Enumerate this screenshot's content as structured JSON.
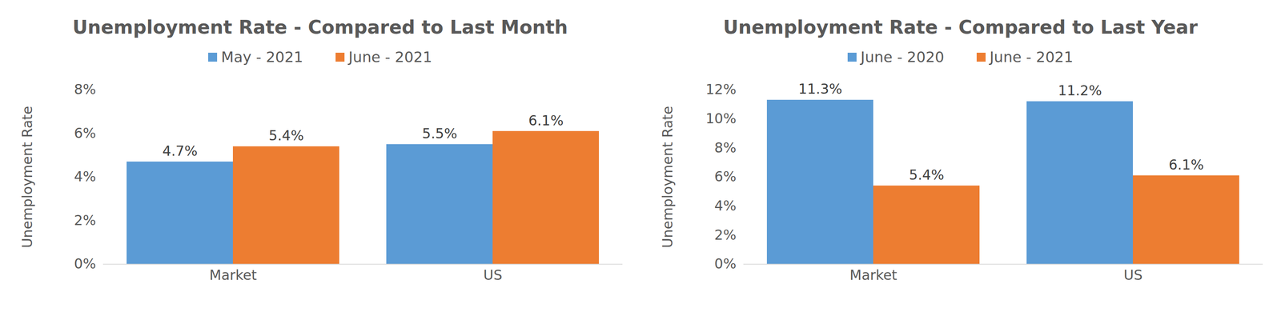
{
  "chart_data": [
    {
      "type": "bar",
      "title": "Unemployment Rate - Compared to Last Month",
      "y_label": "Unemployment Rate",
      "categories": [
        "Market",
        "US"
      ],
      "series": [
        {
          "name": "May - 2021",
          "color": "#5b9bd5",
          "values": [
            4.7,
            5.5
          ],
          "value_labels": [
            "4.7%",
            "5.5%"
          ]
        },
        {
          "name": "June - 2021",
          "color": "#ed7d31",
          "values": [
            5.4,
            6.1
          ],
          "value_labels": [
            "5.4%",
            "6.1%"
          ]
        }
      ],
      "ylim": [
        0,
        8
      ],
      "yticks": [
        {
          "value": 0,
          "label": "0%"
        },
        {
          "value": 2,
          "label": "2%"
        },
        {
          "value": 4,
          "label": "4%"
        },
        {
          "value": 6,
          "label": "6%"
        },
        {
          "value": 8,
          "label": "8%"
        }
      ],
      "grid": false,
      "legend": "top",
      "data_labels": true
    },
    {
      "type": "bar",
      "title": "Unemployment Rate - Compared to Last Year",
      "y_label": "Unemployment Rate",
      "categories": [
        "Market",
        "US"
      ],
      "series": [
        {
          "name": "June - 2020",
          "color": "#5b9bd5",
          "values": [
            11.3,
            11.2
          ],
          "value_labels": [
            "11.3%",
            "11.2%"
          ]
        },
        {
          "name": "June - 2021",
          "color": "#ed7d31",
          "values": [
            5.4,
            6.1
          ],
          "value_labels": [
            "5.4%",
            "6.1%"
          ]
        }
      ],
      "ylim": [
        0,
        12
      ],
      "yticks": [
        {
          "value": 0,
          "label": "0%"
        },
        {
          "value": 2,
          "label": "2%"
        },
        {
          "value": 4,
          "label": "4%"
        },
        {
          "value": 6,
          "label": "6%"
        },
        {
          "value": 8,
          "label": "8%"
        },
        {
          "value": 10,
          "label": "10%"
        },
        {
          "value": 12,
          "label": "12%"
        }
      ],
      "grid": false,
      "legend": "top",
      "data_labels": true
    }
  ]
}
